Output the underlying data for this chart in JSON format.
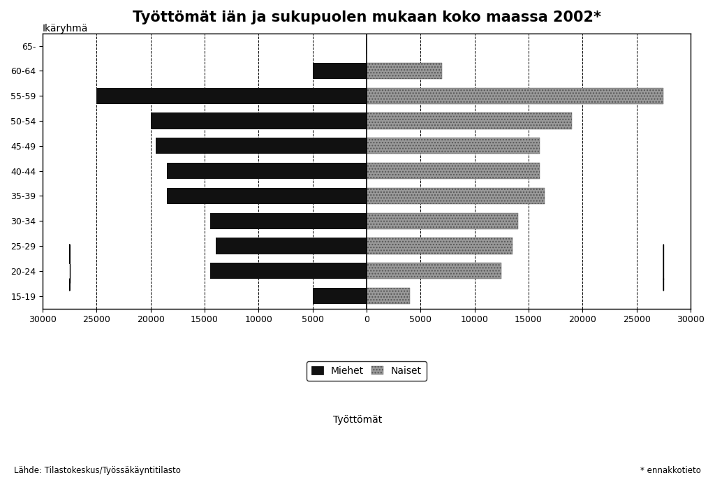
{
  "title": "Työttömät iän ja sukupuolen mukaan koko maassa 2002*",
  "age_groups": [
    "65-",
    "60-64",
    "55-59",
    "50-54",
    "45-49",
    "40-44",
    "35-39",
    "30-34",
    "25-29",
    "20-24",
    "15-19"
  ],
  "men_values": [
    0,
    5000,
    25000,
    20000,
    19500,
    18500,
    18500,
    14500,
    14000,
    14500,
    5000
  ],
  "women_values": [
    0,
    7000,
    27500,
    19000,
    16000,
    16000,
    16500,
    14000,
    13500,
    12500,
    4000
  ],
  "xlabel": "Työttömät",
  "ylabel": "Ikäryhmä",
  "xlim": [
    -30000,
    30000
  ],
  "xticks": [
    -30000,
    -25000,
    -20000,
    -15000,
    -10000,
    -5000,
    0,
    5000,
    10000,
    15000,
    20000,
    25000,
    30000
  ],
  "xticklabels": [
    "30000",
    "25000",
    "20000",
    "15000",
    "10000",
    "5000",
    "0",
    "5000",
    "10000",
    "15000",
    "20000",
    "25000",
    "30000"
  ],
  "men_color": "#111111",
  "women_color": "#999999",
  "women_hatch": "....",
  "background_color": "#ffffff",
  "source_text": "Lähde: Tilastokeskus/Työssäkäyntitilasto",
  "footnote_text": "* ennakkotieto",
  "legend_men": "Miehet",
  "legend_women": "Naiset",
  "bar_height": 0.65,
  "title_fontsize": 15,
  "label_fontsize": 10,
  "tick_fontsize": 9
}
